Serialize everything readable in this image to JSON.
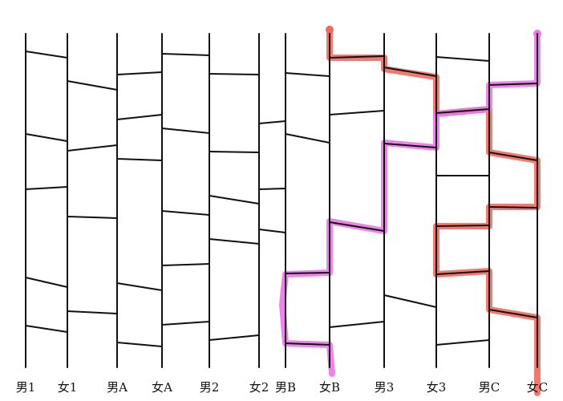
{
  "diagram": {
    "type": "amidakuji-ladder",
    "labels": [
      "男1",
      "女1",
      "男A",
      "女A",
      "男2",
      "女2",
      "男B",
      "女B",
      "男3",
      "女3",
      "男C",
      "女C"
    ],
    "colors": {
      "line": "#111111",
      "path_red": "#ee6b5f",
      "path_magenta": "#ea78e8",
      "background": "#ffffff"
    },
    "paths": [
      {
        "color": "red",
        "start_label": "女B",
        "end_label": "女C"
      },
      {
        "color": "magenta",
        "start_label": "女C",
        "end_label": "女B"
      }
    ]
  }
}
